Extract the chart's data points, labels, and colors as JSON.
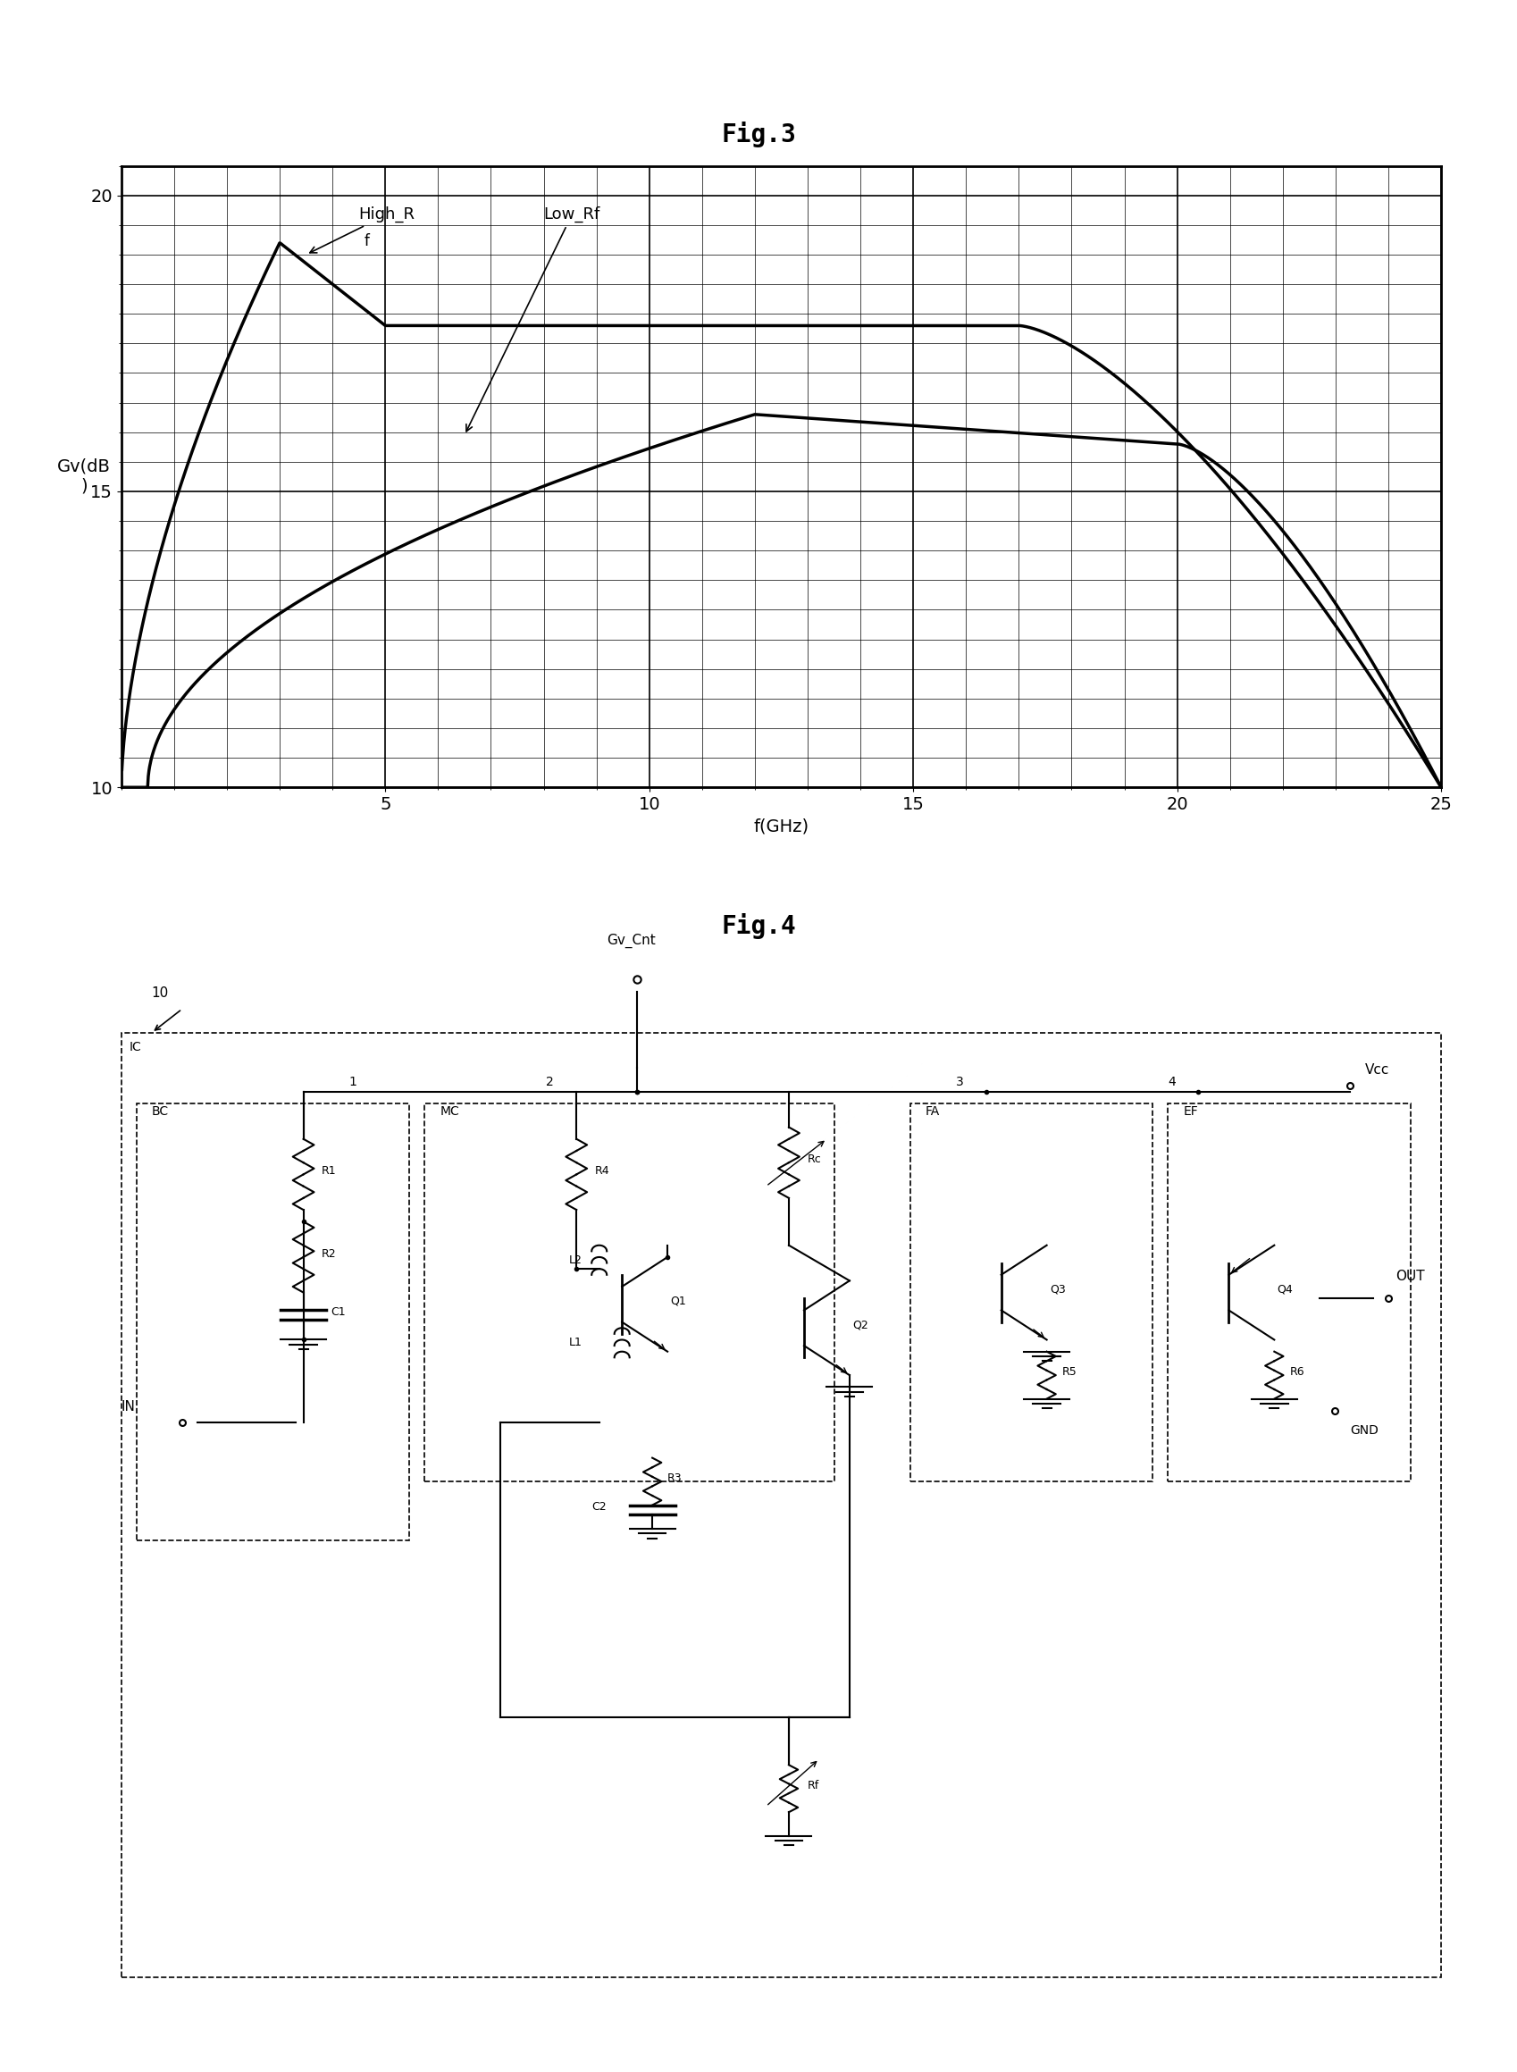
{
  "fig3_title": "Fig.3",
  "fig4_title": "Fig.4",
  "ylabel": "Gv(dB\n)",
  "xlabel": "f(GHz)",
  "xlim": [
    0,
    25
  ],
  "ylim": [
    10,
    20
  ],
  "yticks": [
    10,
    15,
    20
  ],
  "xticks": [
    5,
    10,
    15,
    20,
    25
  ],
  "label_high": "High_R",
  "label_low": "Low_Rf",
  "bg_color": "#ffffff",
  "line_color": "#000000",
  "grid_color": "#000000"
}
